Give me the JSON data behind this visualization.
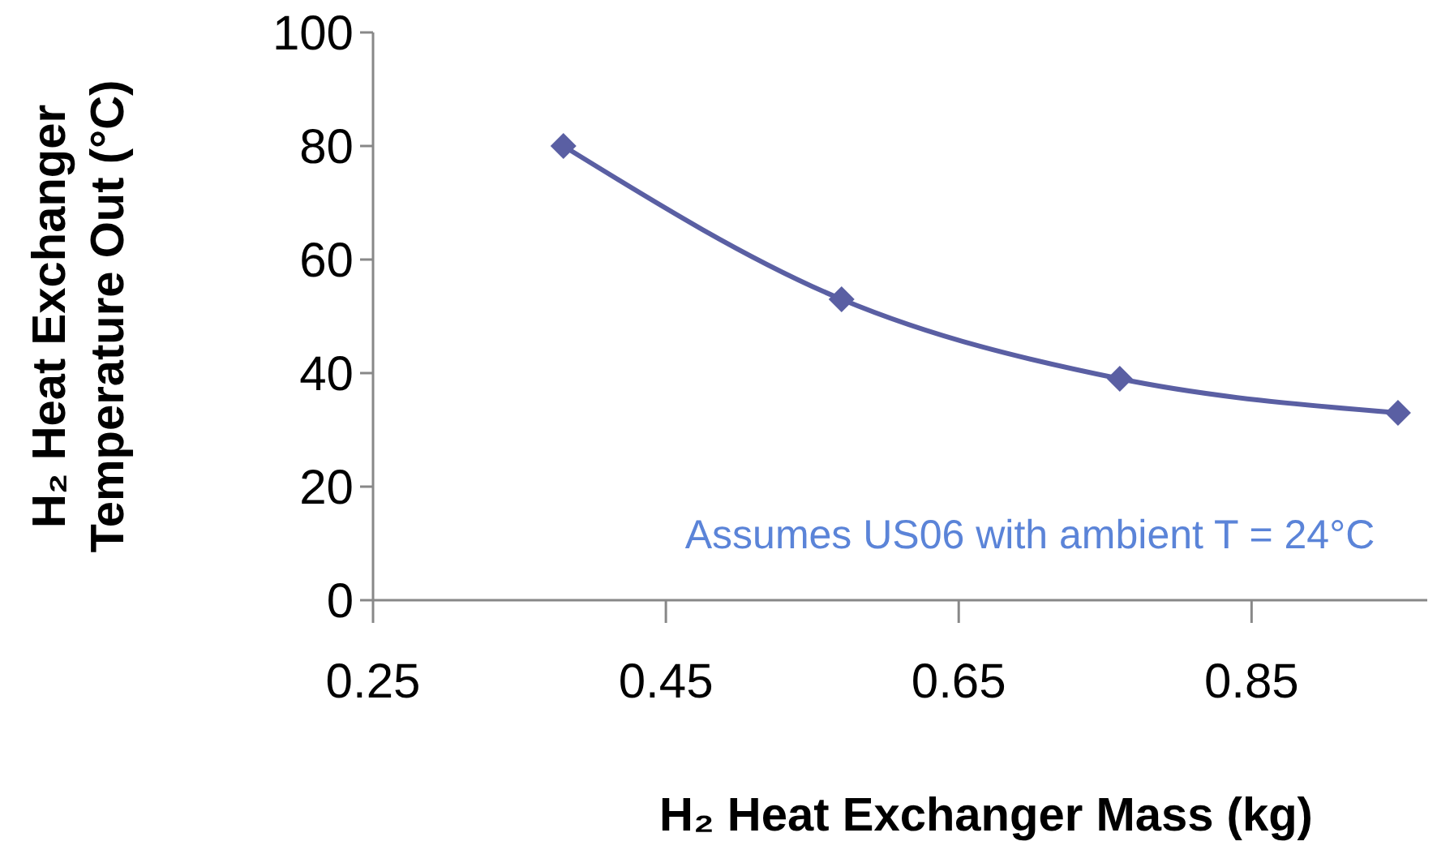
{
  "chart_data": {
    "type": "line",
    "xlabel": "H₂ Heat Exchanger Mass (kg)",
    "ylabel": "H₂ Heat Exchanger Temperature Out (°C)",
    "x": [
      0.38,
      0.57,
      0.76,
      0.95
    ],
    "series": [
      {
        "color": "#5a5fa3",
        "values": [
          80,
          53,
          39,
          33
        ]
      }
    ],
    "xlim": [
      0.25,
      0.97
    ],
    "xticks": [
      0.25,
      0.45,
      0.65,
      0.85
    ],
    "ylim": [
      0,
      100
    ],
    "yticks": [
      0,
      20,
      40,
      60,
      80,
      100
    ],
    "marker": "diamond",
    "line_style": "solid",
    "grid": false,
    "annotations": [
      "Assumes US06 with ambient T  = 24°C"
    ]
  }
}
